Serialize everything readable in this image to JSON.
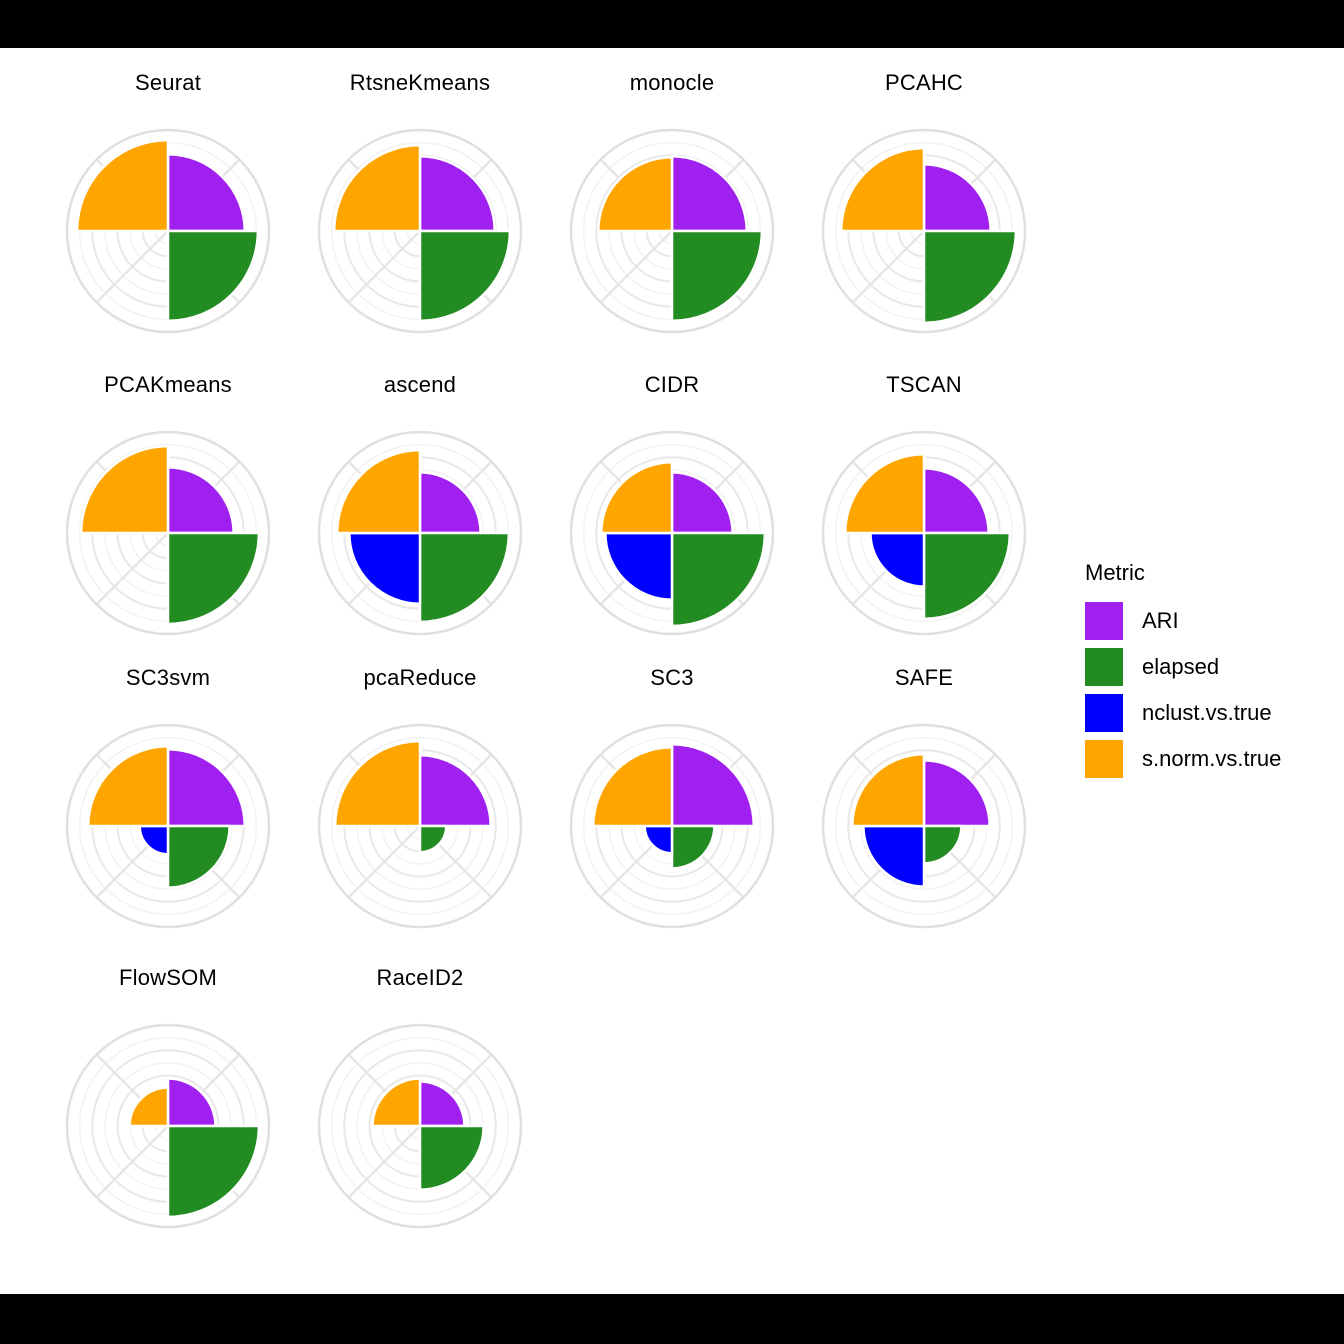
{
  "figure": {
    "frame_color": "#000000",
    "canvas_color": "#ffffff"
  },
  "legend": {
    "title": "Metric",
    "items": [
      {
        "label": "ARI",
        "color": "#a020f0"
      },
      {
        "label": "elapsed",
        "color": "#228b22"
      },
      {
        "label": "nclust.vs.true",
        "color": "#0000ff"
      },
      {
        "label": "s.norm.vs.true",
        "color": "#ffa500"
      }
    ]
  },
  "chart_data": {
    "type": "bar",
    "layout": "polar-coxcomb-faceted",
    "facet_grid": {
      "columns": 4,
      "rows": 4
    },
    "metrics": [
      "ARI",
      "elapsed",
      "nclust.vs.true",
      "s.norm.vs.true"
    ],
    "quadrant_order_clockwise_from_top": [
      "ARI",
      "elapsed",
      "nclust.vs.true",
      "s.norm.vs.true"
    ],
    "rlim": [
      0,
      1
    ],
    "grid": {
      "major_rings": [
        0.25,
        0.5,
        0.75,
        1.0
      ],
      "minor_rings": [
        0.125,
        0.375,
        0.625,
        0.875
      ],
      "diagonal_spokes_deg": [
        45,
        135,
        225,
        315
      ]
    },
    "panels": [
      {
        "method": "Seurat",
        "values": {
          "ARI": 0.76,
          "elapsed": 0.89,
          "nclust.vs.true": 0.0,
          "s.norm.vs.true": 0.9
        }
      },
      {
        "method": "RtsneKmeans",
        "values": {
          "ARI": 0.74,
          "elapsed": 0.89,
          "nclust.vs.true": 0.0,
          "s.norm.vs.true": 0.85
        }
      },
      {
        "method": "monocle",
        "values": {
          "ARI": 0.74,
          "elapsed": 0.89,
          "nclust.vs.true": 0.0,
          "s.norm.vs.true": 0.73
        }
      },
      {
        "method": "PCAHC",
        "values": {
          "ARI": 0.66,
          "elapsed": 0.91,
          "nclust.vs.true": 0.0,
          "s.norm.vs.true": 0.82
        }
      },
      {
        "method": "PCAKmeans",
        "values": {
          "ARI": 0.65,
          "elapsed": 0.9,
          "nclust.vs.true": 0.0,
          "s.norm.vs.true": 0.86
        }
      },
      {
        "method": "ascend",
        "values": {
          "ARI": 0.6,
          "elapsed": 0.88,
          "nclust.vs.true": 0.7,
          "s.norm.vs.true": 0.82
        }
      },
      {
        "method": "CIDR",
        "values": {
          "ARI": 0.6,
          "elapsed": 0.92,
          "nclust.vs.true": 0.66,
          "s.norm.vs.true": 0.7
        }
      },
      {
        "method": "TSCAN",
        "values": {
          "ARI": 0.64,
          "elapsed": 0.85,
          "nclust.vs.true": 0.53,
          "s.norm.vs.true": 0.78
        }
      },
      {
        "method": "SC3svm",
        "values": {
          "ARI": 0.76,
          "elapsed": 0.61,
          "nclust.vs.true": 0.28,
          "s.norm.vs.true": 0.79
        }
      },
      {
        "method": "pcaReduce",
        "values": {
          "ARI": 0.7,
          "elapsed": 0.26,
          "nclust.vs.true": 0.0,
          "s.norm.vs.true": 0.84
        }
      },
      {
        "method": "SC3",
        "values": {
          "ARI": 0.81,
          "elapsed": 0.42,
          "nclust.vs.true": 0.27,
          "s.norm.vs.true": 0.78
        }
      },
      {
        "method": "SAFE",
        "values": {
          "ARI": 0.65,
          "elapsed": 0.37,
          "nclust.vs.true": 0.6,
          "s.norm.vs.true": 0.71
        }
      },
      {
        "method": "FlowSOM",
        "values": {
          "ARI": 0.47,
          "elapsed": 0.9,
          "nclust.vs.true": 0.0,
          "s.norm.vs.true": 0.38
        }
      },
      {
        "method": "RaceID2",
        "values": {
          "ARI": 0.44,
          "elapsed": 0.63,
          "nclust.vs.true": 0.0,
          "s.norm.vs.true": 0.47
        }
      }
    ]
  }
}
